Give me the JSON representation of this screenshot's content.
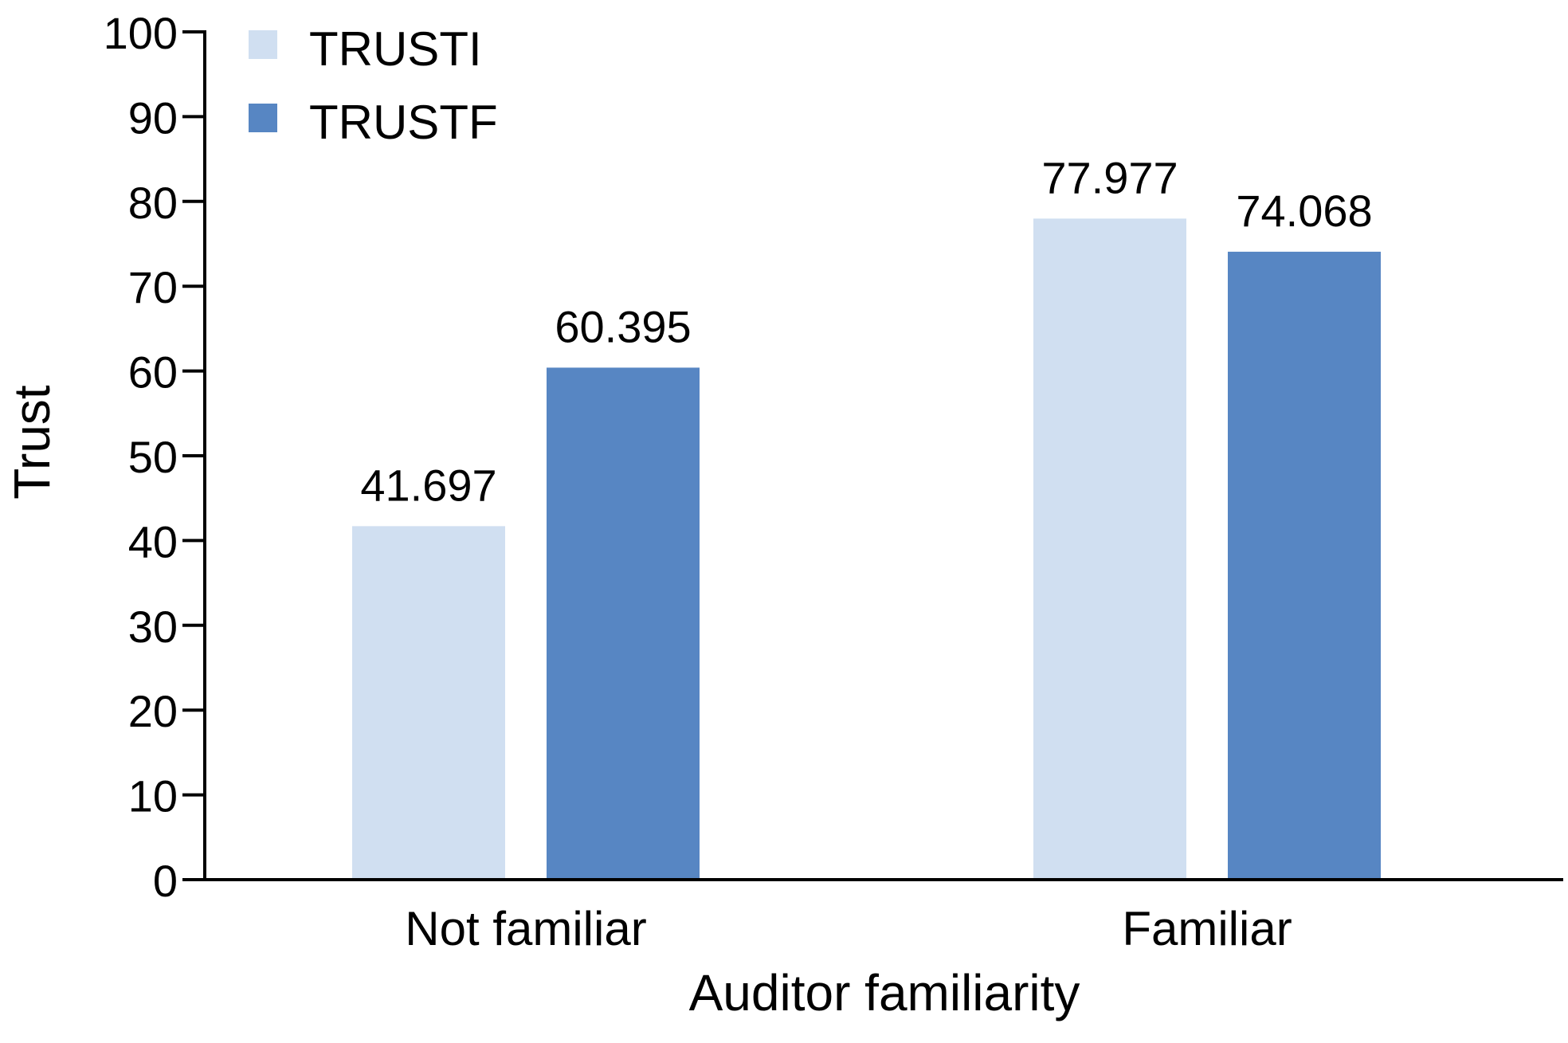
{
  "chart_data": {
    "type": "bar",
    "title": "",
    "xlabel": "Auditor familiarity",
    "ylabel": "Trust",
    "categories": [
      "Not familiar",
      "Familiar"
    ],
    "series": [
      {
        "name": "TRUSTI",
        "values": [
          41.697,
          77.977
        ],
        "color": "#d0dff1"
      },
      {
        "name": "TRUSTF",
        "values": [
          60.395,
          74.068
        ],
        "color": "#5786c3"
      }
    ],
    "data_labels": [
      [
        "41.697",
        "77.977"
      ],
      [
        "60.395",
        "74.068"
      ]
    ],
    "ylim": [
      0,
      100
    ],
    "yticks": [
      0,
      10,
      20,
      30,
      40,
      50,
      60,
      70,
      80,
      90,
      100
    ],
    "ytick_labels": [
      "0",
      "10",
      "20",
      "30",
      "40",
      "50",
      "60",
      "70",
      "80",
      "90",
      "100"
    ],
    "grid": false,
    "legend": "top-left"
  }
}
